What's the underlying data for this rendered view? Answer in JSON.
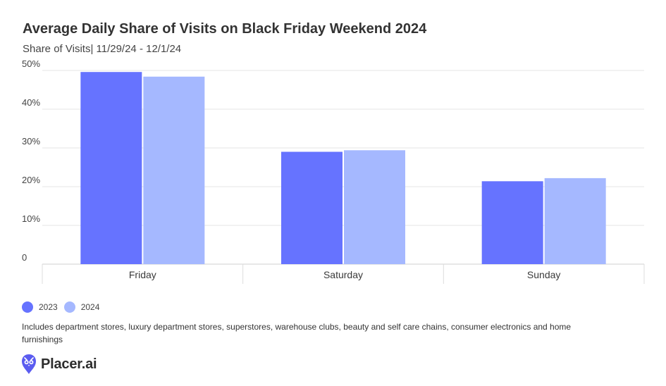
{
  "chart_data": {
    "type": "bar",
    "title": "Average Daily Share of Visits on Black Friday Weekend 2024",
    "subtitle": "Share of Visits| 11/29/24 - 12/1/24",
    "categories": [
      "Friday",
      "Saturday",
      "Sunday"
    ],
    "series": [
      {
        "name": "2023",
        "values": [
          49.6,
          29.0,
          21.4
        ],
        "color": "#6673ff"
      },
      {
        "name": "2024",
        "values": [
          48.4,
          29.4,
          22.2
        ],
        "color": "#a5b8ff"
      }
    ],
    "y_ticks": [
      "0",
      "10%",
      "20%",
      "30%",
      "40%",
      "50%"
    ],
    "ylim": [
      0,
      50
    ],
    "grid": true,
    "legend_position": "bottom-left"
  },
  "footnote": "Includes department stores, luxury department stores, superstores, warehouse clubs, beauty and self care chains, consumer electronics and home furnishings",
  "brand": {
    "name": "Placer.ai",
    "icon": "owl-logo-icon",
    "color": "#5b5cf0"
  }
}
